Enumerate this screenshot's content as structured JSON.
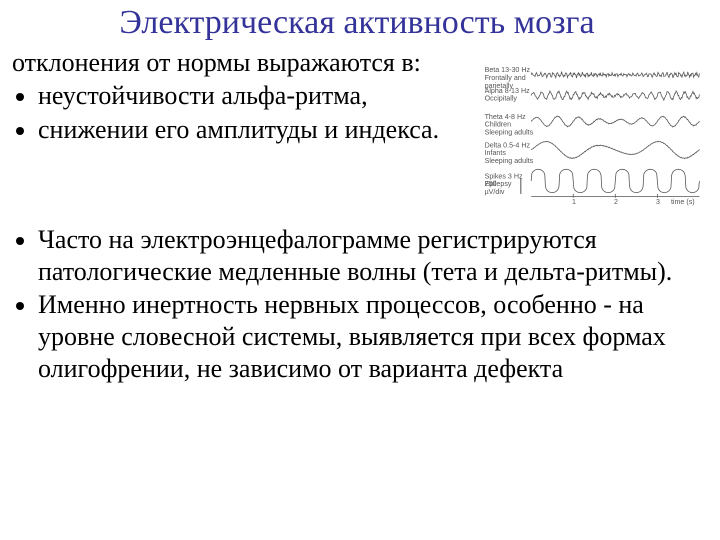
{
  "title": "Электрическая активность мозга",
  "intro": "отклонения от нормы выражаются в:",
  "bullets": [
    " неустойчивости альфа-ритма,",
    "снижении его амплитуды и индекса.",
    "Часто на электроэнцефалограмме регистрируются патологические медленные волны (тета и дельта-ритмы).",
    "Именно инертность нервных процессов, особенно - на уровне словесной системы, выявляется при всех формах олигофрении, не зависимо от варианта дефекта"
  ],
  "eeg": {
    "background": "#ffffff",
    "stroke": "#555555",
    "stroke_width": 0.6,
    "label_color": "#555555",
    "label_fontsize": 5.5,
    "series": [
      {
        "label1": "Beta   13-30 Hz",
        "label2": "Frontally and",
        "label3": "parietally",
        "y": 6,
        "amp": 1.5,
        "freq": 40,
        "noise": 0.8
      },
      {
        "label1": "Alpha   8-13 Hz",
        "label2": "Occipitally",
        "label3": "",
        "y": 22,
        "amp": 3.0,
        "freq": 20,
        "noise": 0.3
      },
      {
        "label1": "Theta   4-8 Hz",
        "label2": "Children",
        "label3": "Sleeping adults",
        "y": 42,
        "amp": 4.0,
        "freq": 8,
        "noise": 0.1
      },
      {
        "label1": "Delta   0.5-4 Hz",
        "label2": "Infants",
        "label3": "Sleeping adults",
        "y": 64,
        "amp": 7.0,
        "freq": 3,
        "noise": 0.05
      },
      {
        "label1": "Spikes   3 Hz",
        "label2": "Epilepsy",
        "label3": "",
        "y": 88,
        "amp": 9.0,
        "freq": 6,
        "noise": 0,
        "spike": true
      }
    ],
    "scale": {
      "vbar_label": "200\nµV/div",
      "hbar_label": "time (s)",
      "ticks": [
        "1",
        "2",
        "3"
      ]
    }
  }
}
